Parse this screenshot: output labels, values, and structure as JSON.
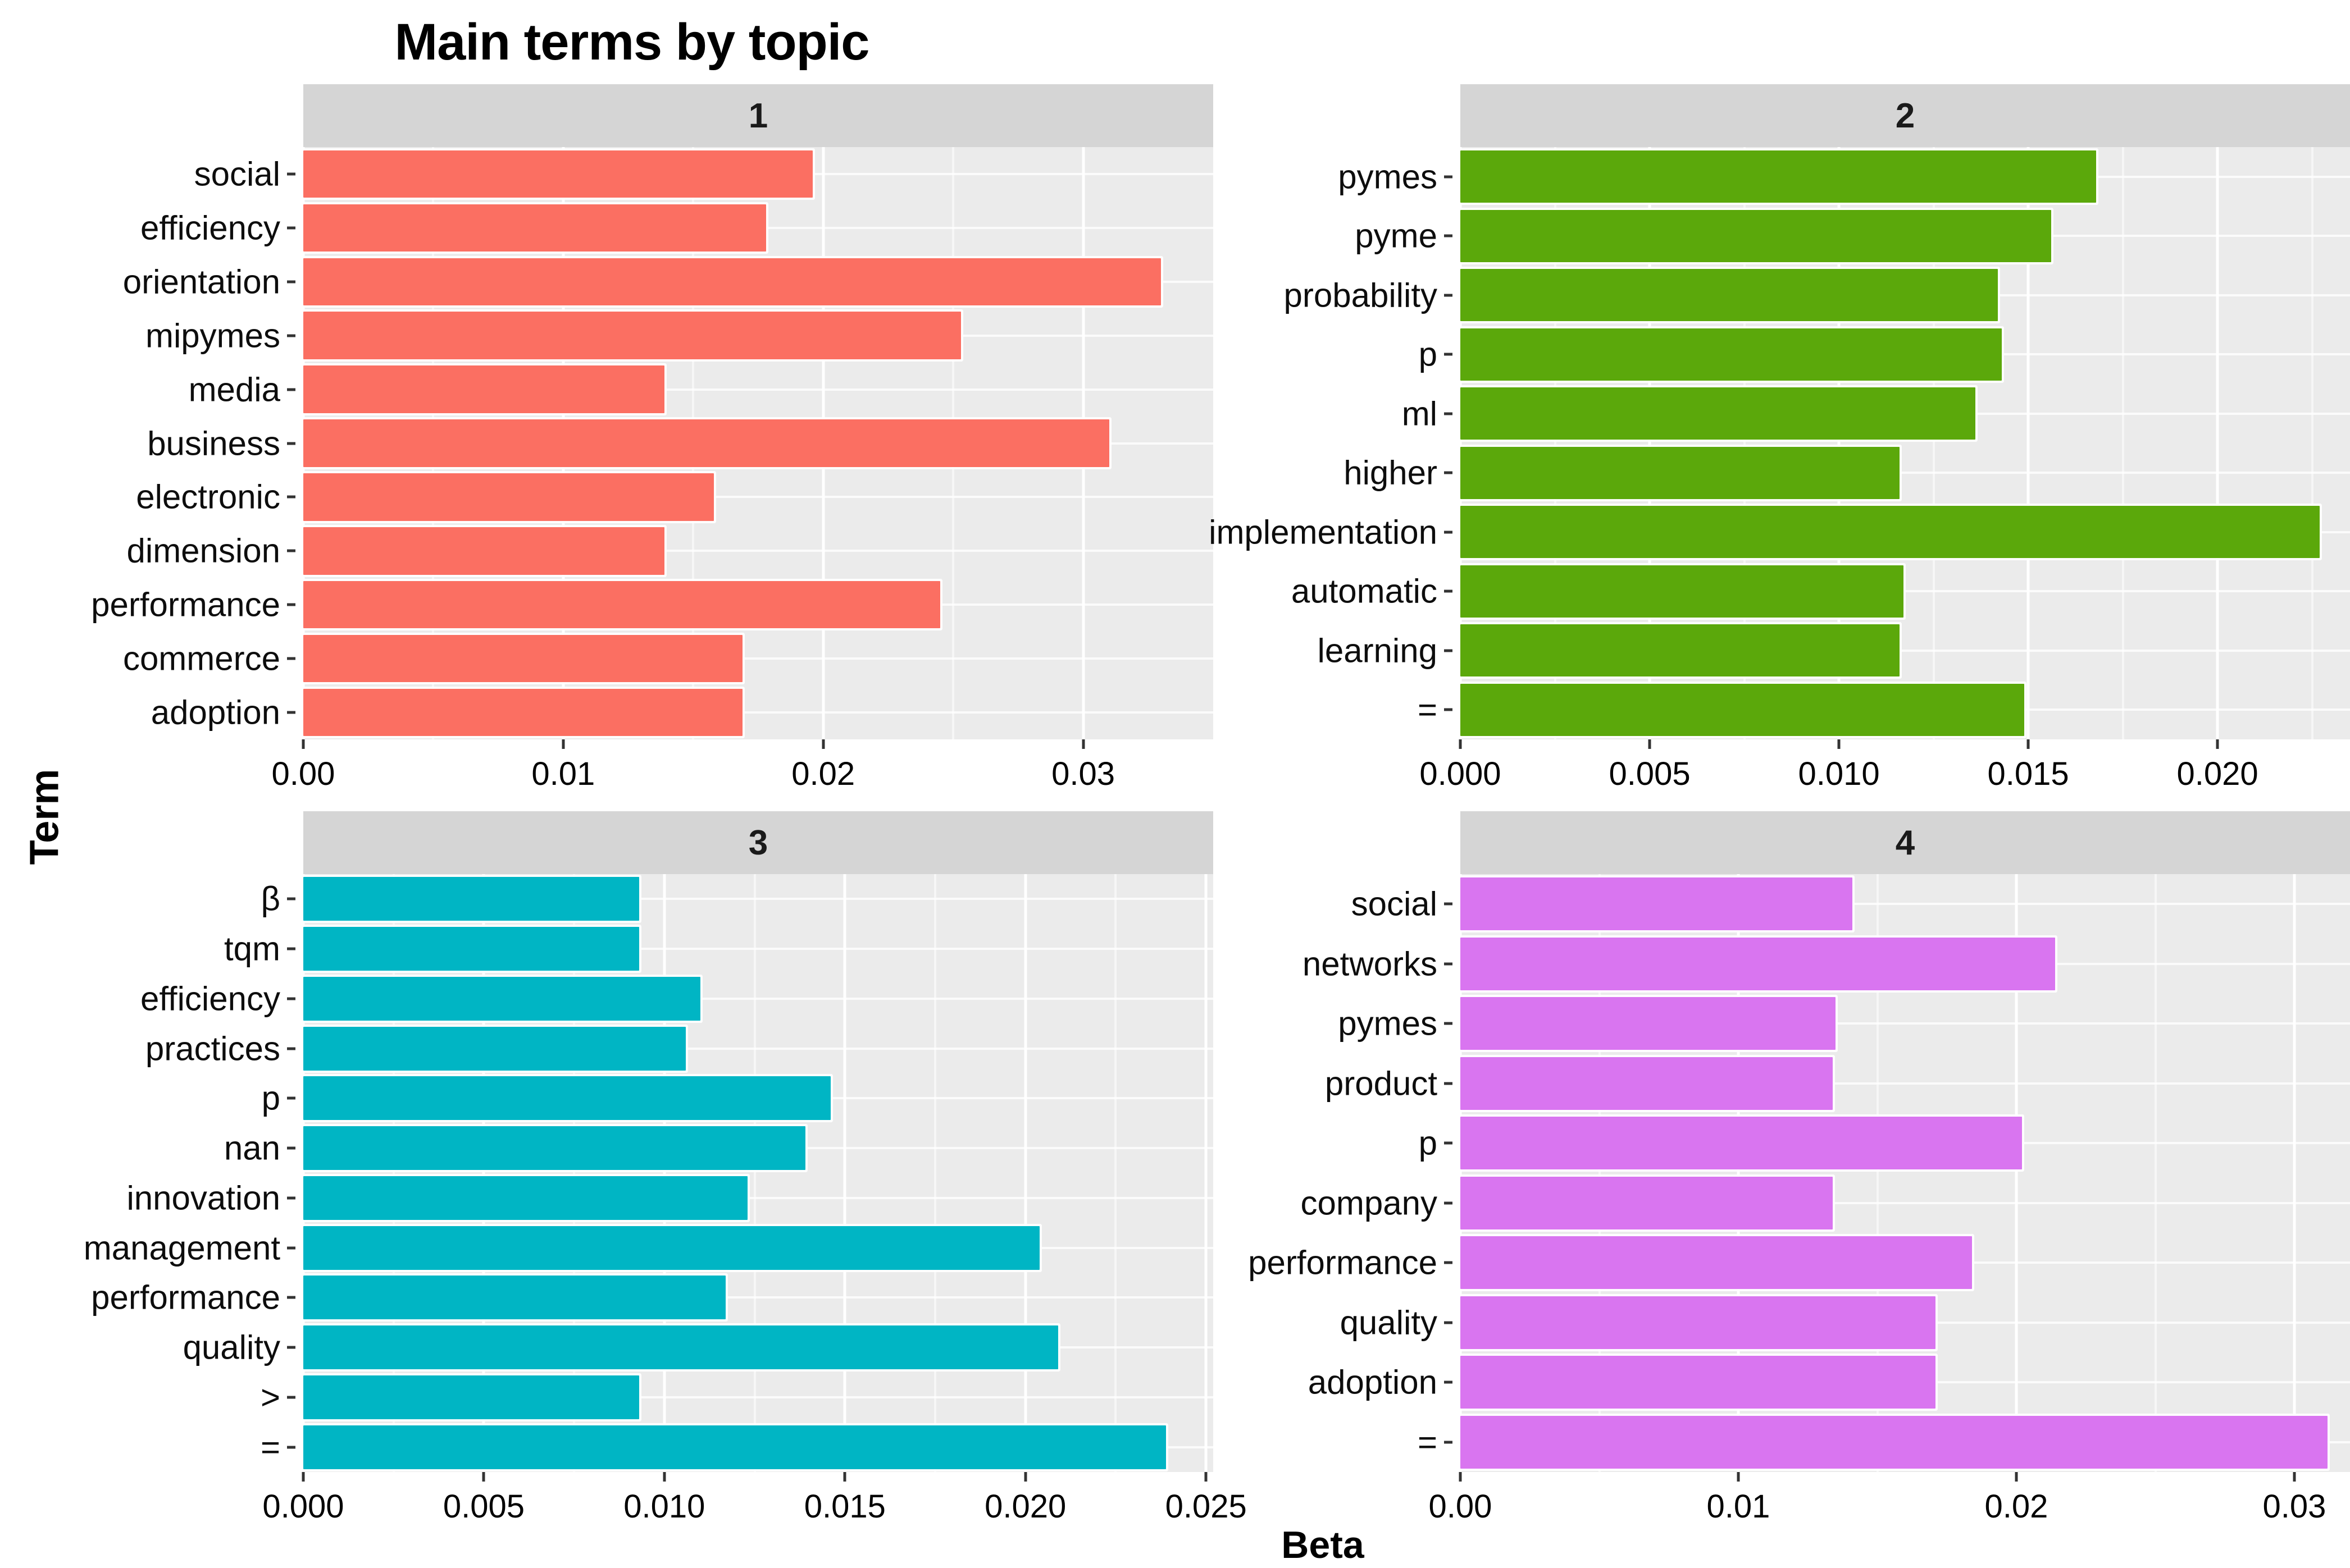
{
  "title": "Main terms by topic",
  "axis_titles": {
    "x": "Beta",
    "y": "Term"
  },
  "colors": {
    "topic1": "#fb6f62",
    "topic2": "#5ba80b",
    "topic3": "#00b5c4",
    "topic4": "#d975f0",
    "panel_bg": "#ebebeb",
    "strip_bg": "#d5d5d5",
    "grid": "#ffffff"
  },
  "chart_data": {
    "type": "bar",
    "orientation": "horizontal",
    "title": "Main terms by topic",
    "xlabel": "Beta",
    "ylabel": "Term",
    "grid": true,
    "legend": false,
    "facets": [
      {
        "label": "1",
        "color": "#fb6f62",
        "xmax": 0.035,
        "ticks": [
          0,
          0.01,
          0.02,
          0.03
        ],
        "tick_labels": [
          "0.00",
          "0.01",
          "0.02",
          "0.03"
        ],
        "terms": [
          "social",
          "efficiency",
          "orientation",
          "mipymes",
          "media",
          "business",
          "electronic",
          "dimension",
          "performance",
          "commerce",
          "adoption"
        ],
        "values": [
          0.0196,
          0.0178,
          0.033,
          0.0253,
          0.0139,
          0.031,
          0.0158,
          0.0139,
          0.0245,
          0.0169,
          0.0169
        ]
      },
      {
        "label": "2",
        "color": "#5ba80b",
        "xmax": 0.0235,
        "ticks": [
          0,
          0.005,
          0.01,
          0.015,
          0.02
        ],
        "tick_labels": [
          "0.000",
          "0.005",
          "0.010",
          "0.015",
          "0.020"
        ],
        "terms": [
          "pymes",
          "pyme",
          "probability",
          "p",
          "ml",
          "higher",
          "implementation",
          "automatic",
          "learning",
          "="
        ],
        "values": [
          0.0168,
          0.0156,
          0.0142,
          0.0143,
          0.0136,
          0.0116,
          0.0227,
          0.0117,
          0.0116,
          0.0149
        ]
      },
      {
        "label": "3",
        "color": "#00b5c4",
        "xmax": 0.0252,
        "ticks": [
          0,
          0.005,
          0.01,
          0.015,
          0.02,
          0.025
        ],
        "tick_labels": [
          "0.000",
          "0.005",
          "0.010",
          "0.015",
          "0.020",
          "0.025"
        ],
        "terms": [
          "β",
          "tqm",
          "efficiency",
          "practices",
          "p",
          "nan",
          "innovation",
          "management",
          "performance",
          "quality",
          ">",
          "="
        ],
        "values": [
          0.0093,
          0.0093,
          0.011,
          0.0106,
          0.0146,
          0.0139,
          0.0123,
          0.0204,
          0.0117,
          0.0209,
          0.0093,
          0.0239
        ]
      },
      {
        "label": "4",
        "color": "#d975f0",
        "xmax": 0.032,
        "ticks": [
          0,
          0.01,
          0.02,
          0.03
        ],
        "tick_labels": [
          "0.00",
          "0.01",
          "0.02",
          "0.03"
        ],
        "terms": [
          "social",
          "networks",
          "pymes",
          "product",
          "p",
          "company",
          "performance",
          "quality",
          "adoption",
          "="
        ],
        "values": [
          0.0141,
          0.0214,
          0.0135,
          0.0134,
          0.0202,
          0.0134,
          0.0184,
          0.0171,
          0.0171,
          0.0312
        ]
      }
    ]
  }
}
